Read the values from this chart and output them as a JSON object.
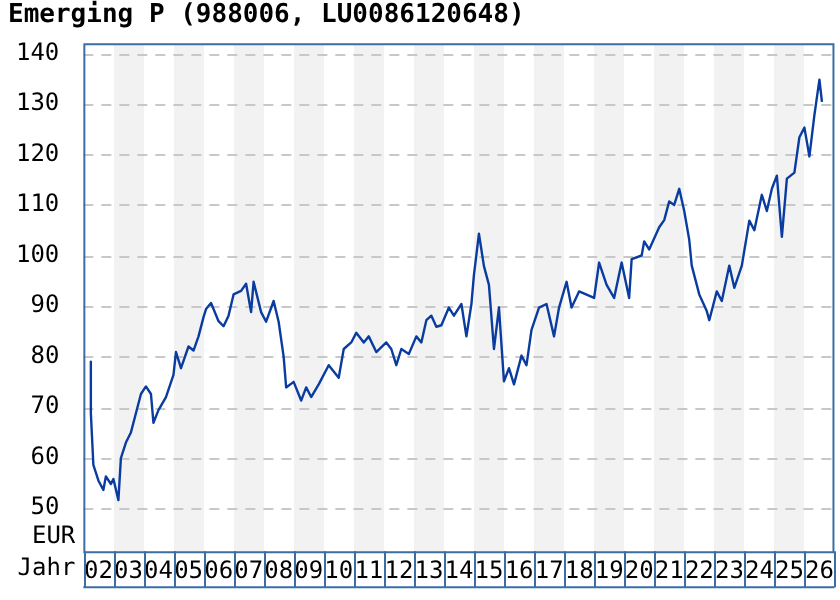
{
  "chart_data": {
    "type": "line",
    "title": "Emerging P (988006, LU0086120648)",
    "xlabel": "Jahr",
    "ylabel": "EUR",
    "x": [
      "2002-04",
      "2002-04",
      "2002-05",
      "2002-07",
      "2002-09",
      "2002-10",
      "2002-12",
      "2003-01",
      "2003-03",
      "2003-04",
      "2003-06",
      "2003-08",
      "2003-10",
      "2003-12",
      "2004-02",
      "2004-04",
      "2004-05",
      "2004-07",
      "2004-10",
      "2005-01",
      "2005-02",
      "2005-04",
      "2005-07",
      "2005-09",
      "2005-11",
      "2006-01",
      "2006-02",
      "2006-04",
      "2006-07",
      "2006-09",
      "2006-11",
      "2007-01",
      "2007-04",
      "2007-06",
      "2007-08",
      "2007-09",
      "2007-12",
      "2008-02",
      "2008-05",
      "2008-07",
      "2008-09",
      "2008-10",
      "2009-01",
      "2009-04",
      "2009-06",
      "2009-08",
      "2009-11",
      "2010-03",
      "2010-07",
      "2010-09",
      "2010-12",
      "2011-02",
      "2011-05",
      "2011-07",
      "2011-10",
      "2012-02",
      "2012-04",
      "2012-06",
      "2012-08",
      "2012-11",
      "2013-02",
      "2013-04",
      "2013-06",
      "2013-08",
      "2013-10",
      "2013-12",
      "2014-03",
      "2014-05",
      "2014-08",
      "2014-10",
      "2014-12",
      "2015-01",
      "2015-03",
      "2015-05",
      "2015-07",
      "2015-09",
      "2015-11",
      "2016-01",
      "2016-03",
      "2016-05",
      "2016-08",
      "2016-10",
      "2016-12",
      "2017-03",
      "2017-06",
      "2017-09",
      "2017-11",
      "2018-02",
      "2018-04",
      "2018-07",
      "2019-01",
      "2019-03",
      "2019-06",
      "2019-09",
      "2019-12",
      "2020-03",
      "2020-04",
      "2020-08",
      "2020-09",
      "2020-11",
      "2021-03",
      "2021-05",
      "2021-07",
      "2021-09",
      "2021-11",
      "2022-01",
      "2022-03",
      "2022-04",
      "2022-07",
      "2022-10",
      "2022-11",
      "2023-02",
      "2023-04",
      "2023-07",
      "2023-09",
      "2023-12",
      "2024-03",
      "2024-05",
      "2024-08",
      "2024-10",
      "2024-12",
      "2025-02",
      "2025-04",
      "2025-06",
      "2025-09",
      "2025-11",
      "2026-01",
      "2026-03",
      "2026-05",
      "2026-07",
      "2026-08"
    ],
    "values": [
      79,
      68.8,
      58.6,
      55.5,
      53.6,
      56.3,
      54.8,
      55.8,
      51.6,
      59.9,
      63,
      65,
      68.8,
      72.6,
      74.1,
      72.6,
      66.9,
      69.4,
      72,
      76.4,
      80.9,
      77.7,
      82,
      81.2,
      84,
      87.8,
      89.4,
      90.6,
      87,
      86,
      88.1,
      92.3,
      93,
      94.4,
      88.8,
      94.8,
      88.8,
      86.9,
      91,
      86.9,
      80,
      73.9,
      75,
      71.3,
      73.9,
      72,
      74.5,
      78.3,
      75.8,
      81.5,
      82.8,
      84.7,
      82.8,
      84,
      80.9,
      82.8,
      81.5,
      78.3,
      81.5,
      80.5,
      84,
      82.8,
      87.2,
      88.1,
      85.9,
      86.2,
      89.7,
      88.1,
      90.4,
      84,
      90.4,
      96.1,
      104.3,
      97.9,
      94.2,
      81.5,
      89.7,
      75.1,
      77.7,
      74.5,
      80.2,
      78.3,
      85.3,
      89.7,
      90.4,
      84,
      89.7,
      94.8,
      89.7,
      92.9,
      91.6,
      98.6,
      94.2,
      91.6,
      98.6,
      91.6,
      99.3,
      100,
      102.8,
      101.2,
      105.6,
      107,
      110.7,
      110,
      113.2,
      108.8,
      103.1,
      98,
      92.3,
      89,
      87.2,
      92.9,
      91,
      98,
      93.6,
      98,
      106.9,
      105,
      112,
      108.8,
      113.2,
      115.8,
      103.7,
      115.2,
      116.4,
      123.4,
      125.3,
      119.6,
      127.8,
      134.8,
      130.4
    ],
    "color": "#0a3ca0",
    "marker": "none",
    "line_style": "solid",
    "xlim": [
      "2002-01-01",
      "2027-01-01"
    ],
    "xticks": [
      {
        "value": "2002-07-02",
        "label": "02"
      },
      {
        "value": "2003-07-02",
        "label": "03"
      },
      {
        "value": "2004-07-02",
        "label": "04"
      },
      {
        "value": "2005-07-02",
        "label": "05"
      },
      {
        "value": "2006-07-02",
        "label": "06"
      },
      {
        "value": "2007-07-02",
        "label": "07"
      },
      {
        "value": "2008-07-02",
        "label": "08"
      },
      {
        "value": "2009-07-02",
        "label": "09"
      },
      {
        "value": "2010-07-02",
        "label": "10"
      },
      {
        "value": "2011-07-02",
        "label": "11"
      },
      {
        "value": "2012-07-02",
        "label": "12"
      },
      {
        "value": "2013-07-02",
        "label": "13"
      },
      {
        "value": "2014-07-02",
        "label": "14"
      },
      {
        "value": "2015-07-02",
        "label": "15"
      },
      {
        "value": "2016-07-02",
        "label": "16"
      },
      {
        "value": "2017-07-02",
        "label": "17"
      },
      {
        "value": "2018-07-02",
        "label": "18"
      },
      {
        "value": "2019-07-02",
        "label": "19"
      },
      {
        "value": "2020-07-02",
        "label": "20"
      },
      {
        "value": "2021-07-02",
        "label": "21"
      },
      {
        "value": "2022-07-02",
        "label": "22"
      },
      {
        "value": "2023-07-02",
        "label": "23"
      },
      {
        "value": "2024-07-02",
        "label": "24"
      },
      {
        "value": "2025-07-02",
        "label": "25"
      },
      {
        "value": "2026-07-02",
        "label": "26"
      }
    ],
    "ylim": [
      41.5,
      142
    ],
    "yticks": [
      50,
      60,
      70,
      80,
      90,
      100,
      110,
      120,
      130,
      140
    ],
    "grid": true
  }
}
